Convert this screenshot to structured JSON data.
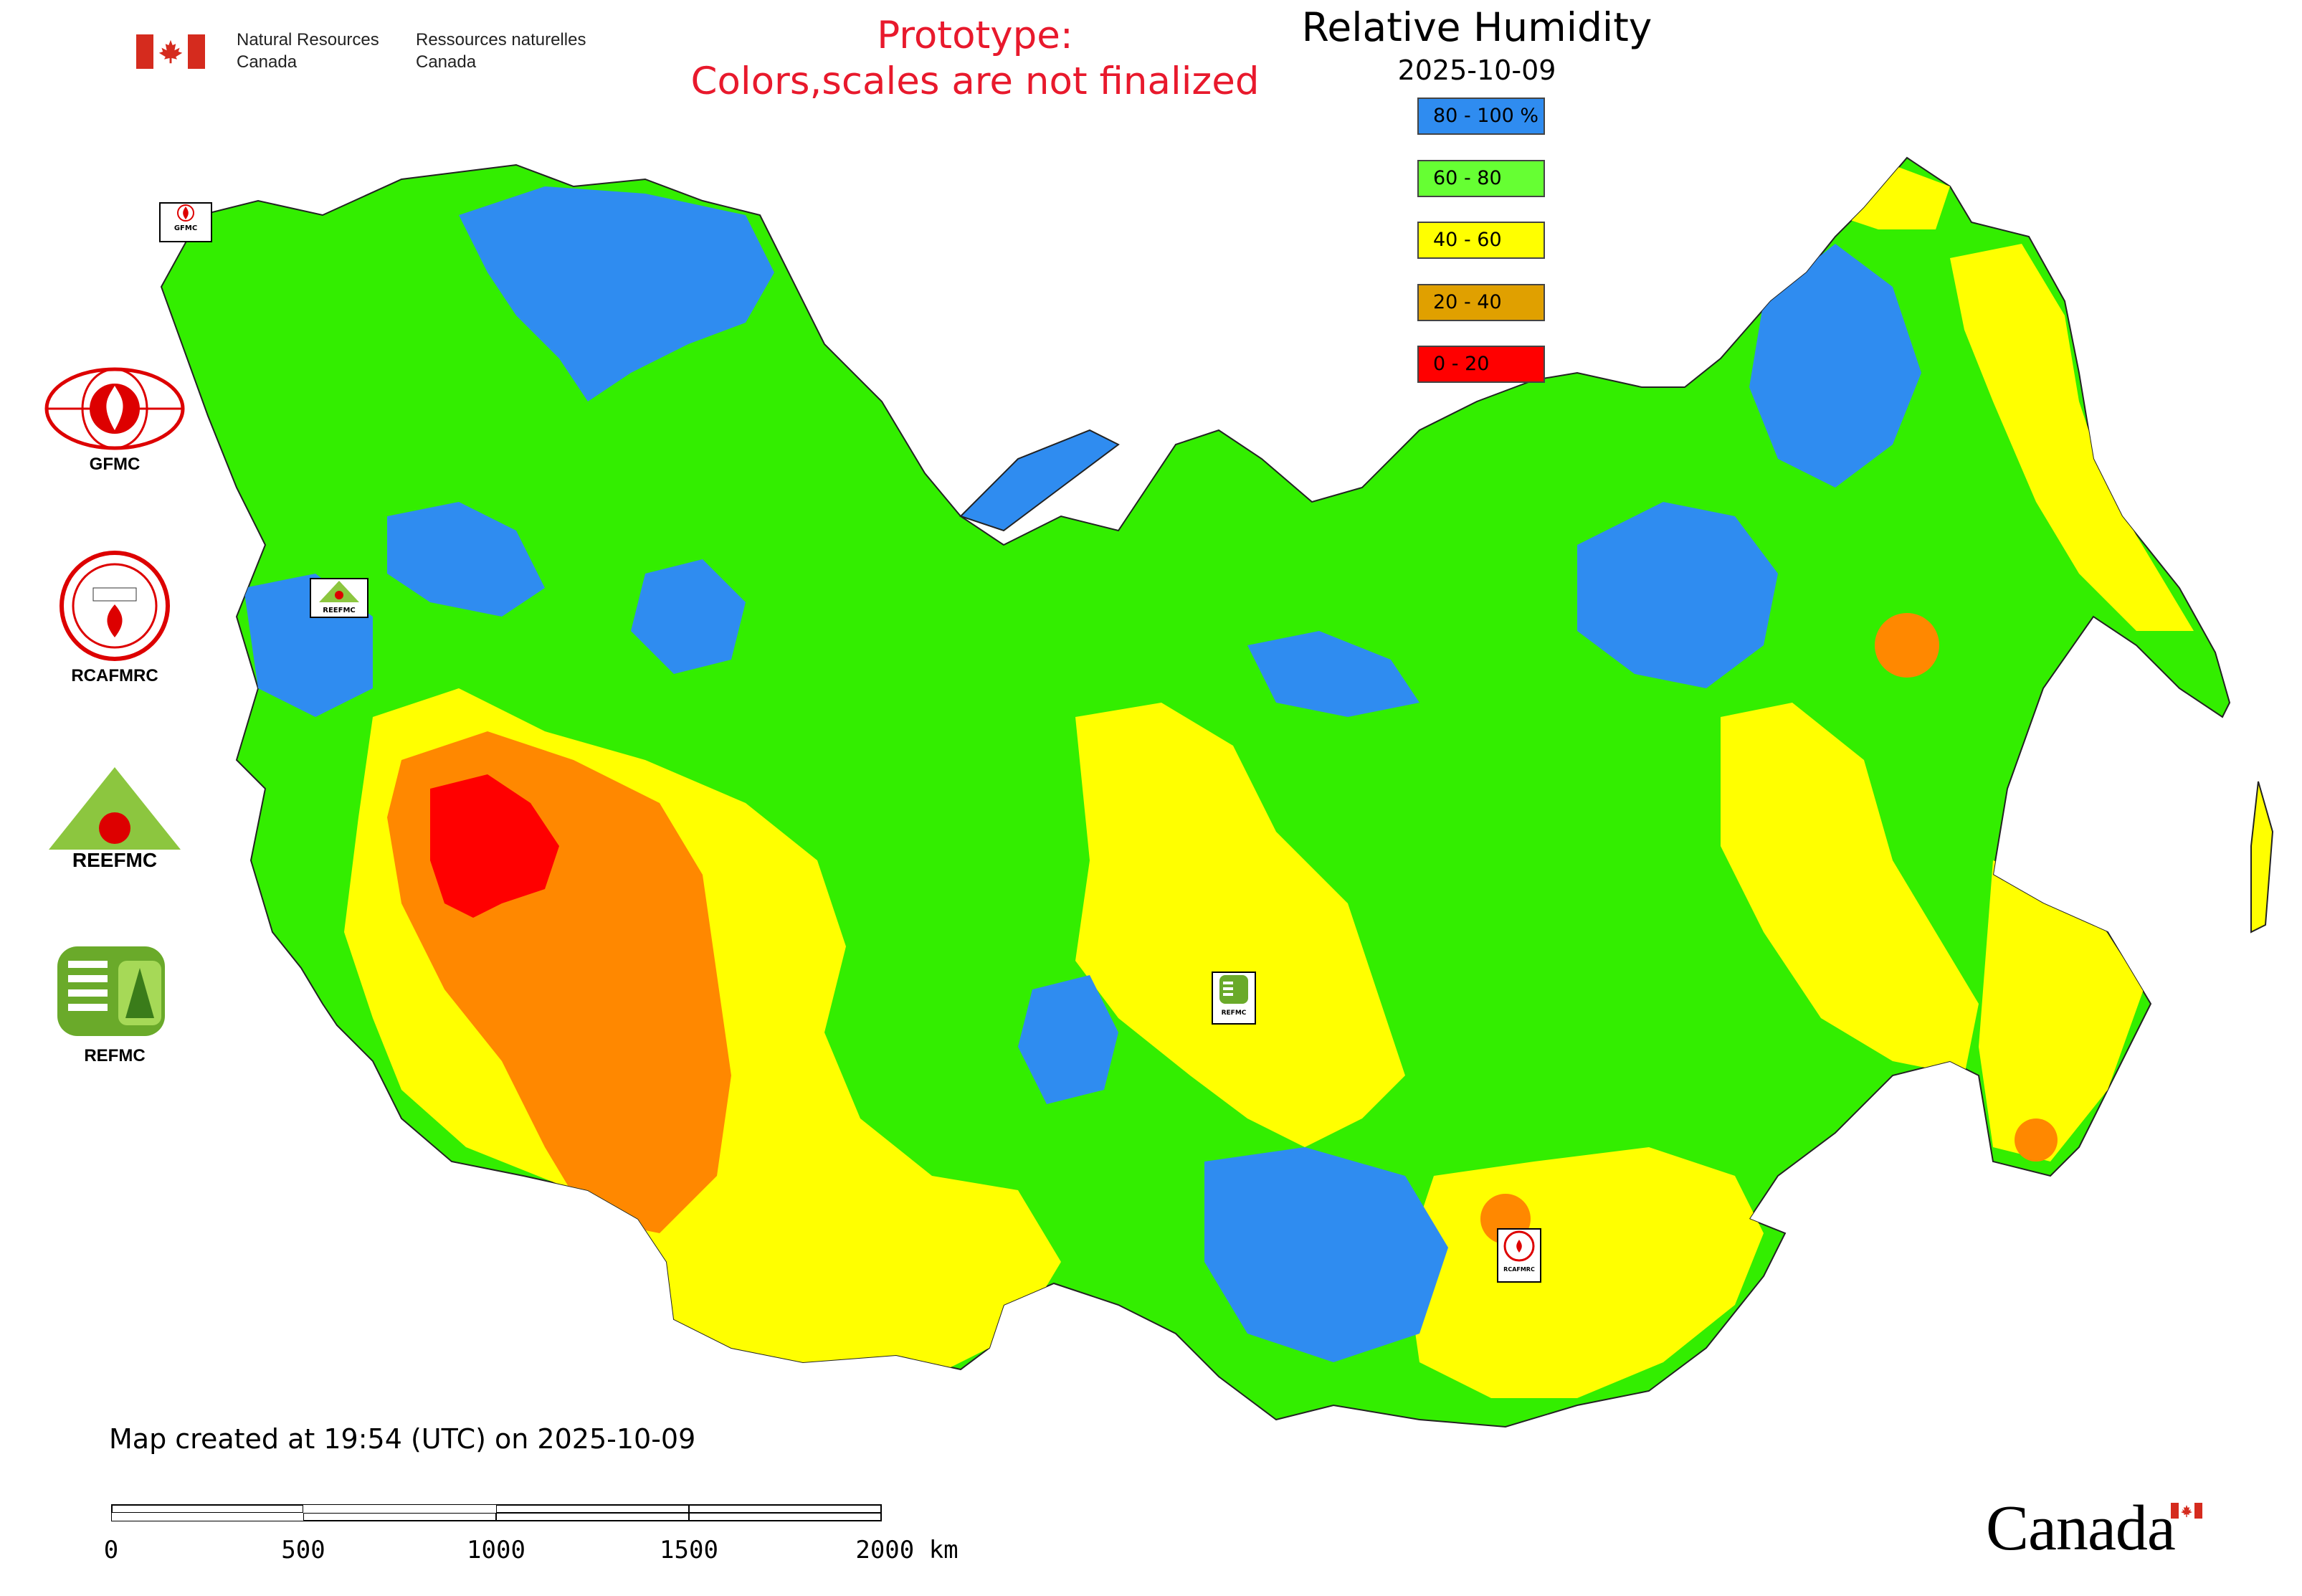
{
  "header": {
    "agency_en_line1": "Natural Resources",
    "agency_en_line2": "Canada",
    "agency_fr_line1": "Ressources naturelles",
    "agency_fr_line2": "Canada",
    "prototype_line1": "Prototype:",
    "prototype_line2": "Colors,scales are not finalized"
  },
  "legend": {
    "title": "Relative Humidity",
    "date": "2025-10-09",
    "classes": [
      {
        "label": "80 - 100 %",
        "color": "#2f8cf0"
      },
      {
        "label": "60 - 80",
        "color": "#66ff33"
      },
      {
        "label": "40 - 60",
        "color": "#ffff00"
      },
      {
        "label": "20 - 40",
        "color": "#e0a000"
      },
      {
        "label": "0 - 20",
        "color": "#ff0000"
      }
    ]
  },
  "side_logos": [
    {
      "caption": "GFMC",
      "icon": "gfmc-logo"
    },
    {
      "caption": "RCAFMRC",
      "icon": "rcafmrc-logo"
    },
    {
      "caption": "REEFMC",
      "icon": "reefmc-logo"
    },
    {
      "caption": "REFMC",
      "icon": "refmc-logo"
    }
  ],
  "map_logo_labels": {
    "gfmc": "GFMC",
    "reefmc": "REEFMC",
    "refmc": "REFMC",
    "rcafmrc": "RCAFMRC"
  },
  "footer": {
    "created": "Map created at 19:54 (UTC) on 2025-10-09",
    "scale_ticks": [
      "0",
      "500",
      "1000",
      "1500",
      "2000 km"
    ],
    "wordmark": "Canada"
  },
  "colors": {
    "blue": "#2f8cf0",
    "green": "#33ee00",
    "yellow": "#ffff00",
    "orange": "#ff8800",
    "red": "#ff0000"
  }
}
